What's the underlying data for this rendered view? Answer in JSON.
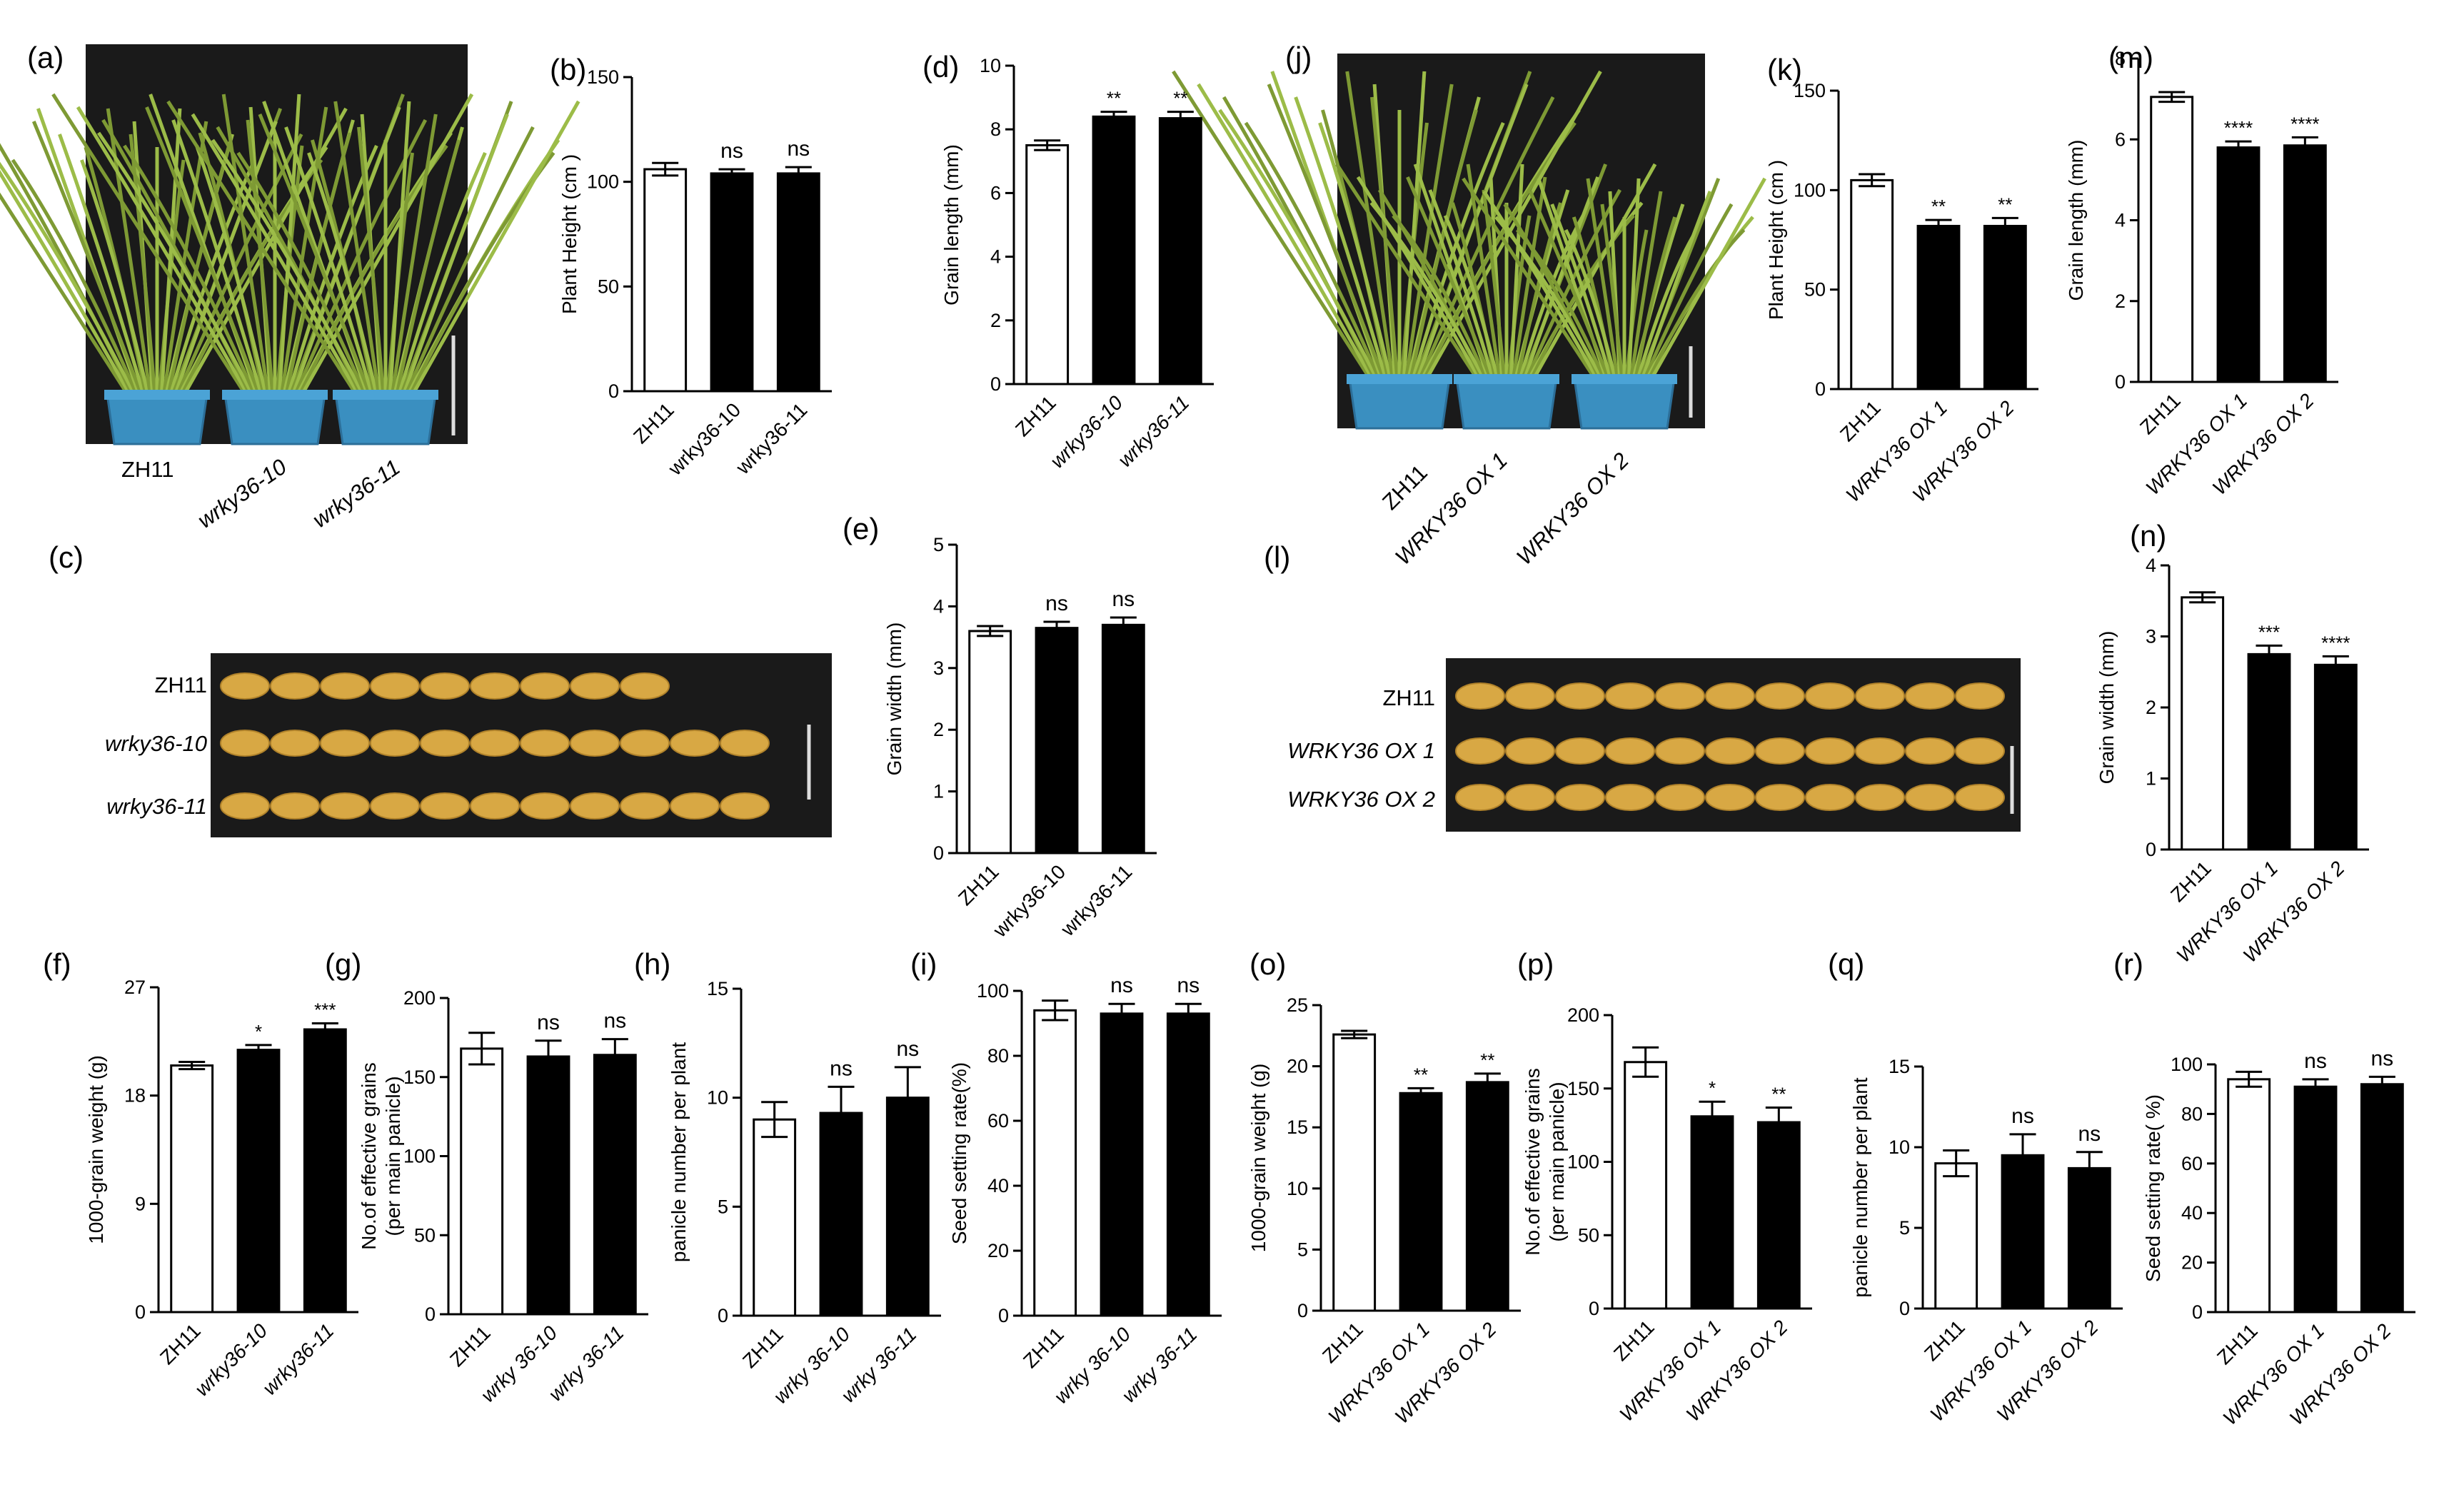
{
  "panels": {
    "a": "(a)",
    "b": "(b)",
    "c": "(c)",
    "d": "(d)",
    "e": "(e)",
    "f": "(f)",
    "g": "(g)",
    "h": "(h)",
    "i": "(i)",
    "j": "(j)",
    "k": "(k)",
    "l": "(l)",
    "m": "(m)",
    "n": "(n)",
    "o": "(o)",
    "p": "(p)",
    "q": "(q)",
    "r": "(r)"
  },
  "photos": {
    "plants_left": [
      "ZH11",
      "wrky36-10",
      "wrky36-11"
    ],
    "plants_right": [
      "ZH11",
      "WRKY36 OX 1",
      "WRKY36 OX 2"
    ],
    "grains_left": [
      "ZH11",
      "wrky36-10",
      "wrky36-11"
    ],
    "grains_right": [
      "ZH11",
      "WRKY36 OX 1",
      "WRKY36 OX 2"
    ]
  },
  "colors": {
    "control": "#ffffff",
    "mutant": "#000000",
    "axis": "#000000",
    "photo_bg": "#1a1a1a",
    "pot": "#3a8fc0",
    "plant": "#8aa83c",
    "grain": "#d8a844"
  },
  "chart_data": [
    {
      "id": "b",
      "type": "bar",
      "ylabel": "Plant Height (cm )",
      "ylim": [
        0,
        150
      ],
      "yticks": [
        0,
        50,
        100,
        150
      ],
      "categories": [
        "ZH11",
        "wrky36-10",
        "wrky36-11"
      ],
      "values": [
        106,
        104,
        104
      ],
      "errors": [
        3,
        2,
        3
      ],
      "significance": [
        "",
        "ns",
        "ns"
      ],
      "italic_ticks": false
    },
    {
      "id": "d",
      "type": "bar",
      "ylabel": "Grain length (mm)",
      "ylim": [
        0,
        10
      ],
      "yticks": [
        0,
        2,
        4,
        6,
        8,
        10
      ],
      "categories": [
        "ZH11",
        "wrky36-10",
        "wrky36-11"
      ],
      "values": [
        7.5,
        8.4,
        8.35
      ],
      "errors": [
        0.15,
        0.15,
        0.2
      ],
      "significance": [
        "",
        "**",
        "**"
      ],
      "italic_ticks": true
    },
    {
      "id": "e",
      "type": "bar",
      "ylabel": "Grain width (mm)",
      "ylim": [
        0,
        5
      ],
      "yticks": [
        0,
        1,
        2,
        3,
        4,
        5
      ],
      "categories": [
        "ZH11",
        "wrky36-10",
        "wrky36-11"
      ],
      "values": [
        3.6,
        3.65,
        3.7
      ],
      "errors": [
        0.08,
        0.1,
        0.12
      ],
      "significance": [
        "",
        "ns",
        "ns"
      ],
      "italic_ticks": false
    },
    {
      "id": "f",
      "type": "bar",
      "ylabel": "1000-grain weight (g)",
      "ylim": [
        0,
        27
      ],
      "yticks": [
        0,
        9,
        18,
        27
      ],
      "categories": [
        "ZH11",
        "wrky36-10",
        "wrky36-11"
      ],
      "values": [
        20.5,
        21.8,
        23.5
      ],
      "errors": [
        0.3,
        0.4,
        0.5
      ],
      "significance": [
        "",
        "*",
        "***"
      ],
      "italic_ticks": true
    },
    {
      "id": "g",
      "type": "bar",
      "ylabel": "No.of effective grains (per main panicle)",
      "ylim": [
        0,
        200
      ],
      "yticks": [
        0,
        50,
        100,
        150,
        200
      ],
      "categories": [
        "ZH11",
        "wrky 36-10",
        "wrky 36-11"
      ],
      "values": [
        168,
        163,
        164
      ],
      "errors": [
        10,
        10,
        10
      ],
      "significance": [
        "",
        "ns",
        "ns"
      ],
      "italic_ticks": true
    },
    {
      "id": "h",
      "type": "bar",
      "ylabel": "panicle number per plant",
      "ylim": [
        0,
        15
      ],
      "yticks": [
        0,
        5,
        10,
        15
      ],
      "categories": [
        "ZH11",
        "wrky 36-10",
        "wrky 36-11"
      ],
      "values": [
        9,
        9.3,
        10
      ],
      "errors": [
        0.8,
        1.2,
        1.4
      ],
      "significance": [
        "",
        "ns",
        "ns"
      ],
      "italic_ticks": true
    },
    {
      "id": "i",
      "type": "bar",
      "ylabel": "Seed setting rate(%)",
      "ylim": [
        0,
        100
      ],
      "yticks": [
        0,
        20,
        40,
        60,
        80,
        100
      ],
      "categories": [
        "ZH11",
        "wrky 36-10",
        "wrky 36-11"
      ],
      "values": [
        94,
        93,
        93
      ],
      "errors": [
        3,
        3,
        3
      ],
      "significance": [
        "",
        "ns",
        "ns"
      ],
      "italic_ticks": true
    },
    {
      "id": "k",
      "type": "bar",
      "ylabel": "Plant Height (cm )",
      "ylim": [
        0,
        150
      ],
      "yticks": [
        0,
        50,
        100,
        150
      ],
      "categories": [
        "ZH11",
        "WRKY36 OX 1",
        "WRKY36 OX 2"
      ],
      "values": [
        105,
        82,
        82
      ],
      "errors": [
        3,
        3,
        4
      ],
      "significance": [
        "",
        "**",
        "**"
      ],
      "italic_ticks": true
    },
    {
      "id": "m",
      "type": "bar",
      "ylabel": "Grain length (mm)",
      "ylim": [
        0,
        8
      ],
      "yticks": [
        0,
        2,
        4,
        6,
        8
      ],
      "categories": [
        "ZH11",
        "WRKY36 OX 1",
        "WRKY36 OX 2"
      ],
      "values": [
        7.05,
        5.8,
        5.85
      ],
      "errors": [
        0.12,
        0.15,
        0.2
      ],
      "significance": [
        "",
        "****",
        "****"
      ],
      "italic_ticks": true
    },
    {
      "id": "n",
      "type": "bar",
      "ylabel": "Grain width (mm)",
      "ylim": [
        0,
        4
      ],
      "yticks": [
        0,
        1,
        2,
        3,
        4
      ],
      "categories": [
        "ZH11",
        "WRKY36 OX 1",
        "WRKY36 OX 2"
      ],
      "values": [
        3.55,
        2.75,
        2.6
      ],
      "errors": [
        0.07,
        0.12,
        0.12
      ],
      "significance": [
        "",
        "***",
        "****"
      ],
      "italic_ticks": true
    },
    {
      "id": "o",
      "type": "bar",
      "ylabel": "1000-grain weight (g)",
      "ylim": [
        0,
        25
      ],
      "yticks": [
        0,
        5,
        10,
        15,
        20,
        25
      ],
      "categories": [
        "ZH11",
        "WRKY36 OX 1",
        "WRKY36 OX 2"
      ],
      "values": [
        22.6,
        17.8,
        18.7
      ],
      "errors": [
        0.3,
        0.4,
        0.7
      ],
      "significance": [
        "",
        "**",
        "**"
      ],
      "italic_ticks": true
    },
    {
      "id": "p",
      "type": "bar",
      "ylabel": "No.of effective grains (per main panicle)",
      "ylim": [
        0,
        200
      ],
      "yticks": [
        0,
        50,
        100,
        150,
        200
      ],
      "categories": [
        "ZH11",
        "WRKY36 OX 1",
        "WRKY36 OX 2"
      ],
      "values": [
        168,
        131,
        127
      ],
      "errors": [
        10,
        10,
        10
      ],
      "significance": [
        "",
        "*",
        "**"
      ],
      "italic_ticks": true
    },
    {
      "id": "q",
      "type": "bar",
      "ylabel": "panicle number per plant",
      "ylim": [
        0,
        15
      ],
      "yticks": [
        0,
        5,
        10,
        15
      ],
      "categories": [
        "ZH11",
        "WRKY36 OX 1",
        "WRKY36 OX 2"
      ],
      "values": [
        9,
        9.5,
        8.7
      ],
      "errors": [
        0.8,
        1.3,
        1.0
      ],
      "significance": [
        "",
        "ns",
        "ns"
      ],
      "italic_ticks": true
    },
    {
      "id": "r",
      "type": "bar",
      "ylabel": "Seed setting rate( %)",
      "ylim": [
        0,
        100
      ],
      "yticks": [
        0,
        20,
        40,
        60,
        80,
        100
      ],
      "categories": [
        "ZH11",
        "WRKY36 OX 1",
        "WRKY36 OX 2"
      ],
      "values": [
        94,
        91,
        92
      ],
      "errors": [
        3,
        3,
        3
      ],
      "significance": [
        "",
        "ns",
        "ns"
      ],
      "italic_ticks": true
    }
  ]
}
